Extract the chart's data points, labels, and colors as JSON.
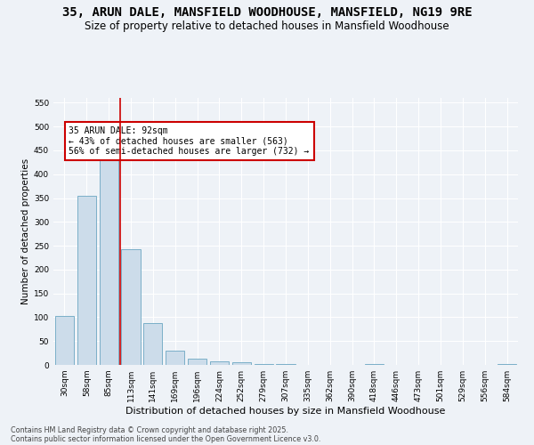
{
  "title": "35, ARUN DALE, MANSFIELD WOODHOUSE, MANSFIELD, NG19 9RE",
  "subtitle": "Size of property relative to detached houses in Mansfield Woodhouse",
  "xlabel": "Distribution of detached houses by size in Mansfield Woodhouse",
  "ylabel": "Number of detached properties",
  "categories": [
    "30sqm",
    "58sqm",
    "85sqm",
    "113sqm",
    "141sqm",
    "169sqm",
    "196sqm",
    "224sqm",
    "252sqm",
    "279sqm",
    "307sqm",
    "335sqm",
    "362sqm",
    "390sqm",
    "418sqm",
    "446sqm",
    "473sqm",
    "501sqm",
    "529sqm",
    "556sqm",
    "584sqm"
  ],
  "values": [
    103,
    355,
    455,
    243,
    87,
    30,
    13,
    8,
    5,
    2,
    1,
    0,
    0,
    0,
    2,
    0,
    0,
    0,
    0,
    0,
    2
  ],
  "bar_color": "#ccdcea",
  "bar_edge_color": "#7aafc8",
  "vline_color": "#cc0000",
  "annotation_text": "35 ARUN DALE: 92sqm\n← 43% of detached houses are smaller (563)\n56% of semi-detached houses are larger (732) →",
  "annotation_box_color": "#ffffff",
  "annotation_box_edge": "#cc0000",
  "ylim": [
    0,
    560
  ],
  "yticks": [
    0,
    50,
    100,
    150,
    200,
    250,
    300,
    350,
    400,
    450,
    500,
    550
  ],
  "footer1": "Contains HM Land Registry data © Crown copyright and database right 2025.",
  "footer2": "Contains public sector information licensed under the Open Government Licence v3.0.",
  "title_fontsize": 10,
  "subtitle_fontsize": 8.5,
  "bg_color": "#eef2f7",
  "grid_color": "#ffffff",
  "ylabel_fontsize": 7.5,
  "xlabel_fontsize": 8,
  "tick_fontsize": 6.5,
  "ann_fontsize": 7,
  "footer_fontsize": 5.8
}
